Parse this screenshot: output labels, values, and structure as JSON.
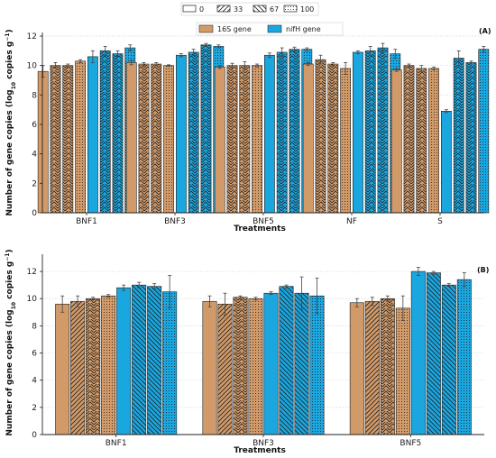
{
  "legend_hatch": {
    "items": [
      {
        "label": "0",
        "pattern": "none"
      },
      {
        "label": "33",
        "pattern": "diag"
      },
      {
        "label": "67",
        "pattern": "backdiag"
      },
      {
        "label": "100",
        "pattern": "dots"
      }
    ]
  },
  "colors": {
    "gene_16s": "#D29A68",
    "gene_nifh": "#1AA6DF",
    "grid": "#DDDDDD"
  },
  "chart_data": [
    {
      "type": "bar",
      "panel_label": "(A)",
      "xlabel": "Treatments",
      "ylabel_main": "Number of gene copies (log",
      "ylabel_sub": "10",
      "ylabel_tail": " copies g",
      "ylabel_sup": "−1",
      "ylabel_close": ")",
      "ylim": [
        0,
        12
      ],
      "yticks": [
        0,
        2,
        4,
        6,
        8,
        10,
        12
      ],
      "grid": true,
      "legend": {
        "position": "top-center",
        "entries": [
          "16S gene",
          "nifH gene"
        ]
      },
      "categories": [
        "BNF1",
        "BNF3",
        "BNF5",
        "NF",
        "S"
      ],
      "hatch_order": [
        "none",
        "chevron",
        "chevron",
        "dots",
        "none",
        "chevron",
        "chevron",
        "dots"
      ],
      "series": [
        {
          "gene": "16S gene",
          "level": "0",
          "values": [
            9.6,
            10.2,
            9.9,
            10.1,
            9.7
          ],
          "errors": [
            0.4,
            0.15,
            0.1,
            0.1,
            0.1
          ]
        },
        {
          "gene": "16S gene",
          "level": "33",
          "values": [
            10.0,
            10.1,
            10.0,
            10.4,
            10.0
          ],
          "errors": [
            0.2,
            0.1,
            0.15,
            0.3,
            0.1
          ]
        },
        {
          "gene": "16S gene",
          "level": "67",
          "values": [
            10.0,
            10.1,
            10.0,
            10.1,
            9.8
          ],
          "errors": [
            0.1,
            0.1,
            0.25,
            0.1,
            0.2
          ]
        },
        {
          "gene": "16S gene",
          "level": "100",
          "values": [
            10.3,
            10.0,
            10.0,
            9.8,
            9.8
          ],
          "errors": [
            0.1,
            0.05,
            0.1,
            0.4,
            0.1
          ]
        },
        {
          "gene": "nifH gene",
          "level": "0",
          "values": [
            10.6,
            10.7,
            10.7,
            10.9,
            6.9
          ],
          "errors": [
            0.4,
            0.1,
            0.15,
            0.1,
            0.1
          ]
        },
        {
          "gene": "nifH gene",
          "level": "33",
          "values": [
            11.0,
            10.9,
            10.9,
            11.0,
            10.5
          ],
          "errors": [
            0.3,
            0.2,
            0.3,
            0.3,
            0.5
          ]
        },
        {
          "gene": "nifH gene",
          "level": "67",
          "values": [
            10.8,
            11.4,
            11.1,
            11.2,
            10.2
          ],
          "errors": [
            0.2,
            0.1,
            0.15,
            0.3,
            0.1
          ]
        },
        {
          "gene": "nifH gene",
          "level": "100",
          "values": [
            11.2,
            11.3,
            11.1,
            10.8,
            11.1
          ],
          "errors": [
            0.2,
            0.1,
            0.1,
            0.3,
            0.2
          ]
        }
      ]
    },
    {
      "type": "bar",
      "panel_label": "(B)",
      "xlabel": "Treatments",
      "ylabel_main": "Number of gene copies (log",
      "ylabel_sub": "10",
      "ylabel_tail": " copies g",
      "ylabel_sup": "−1",
      "ylabel_close": ")",
      "ylim": [
        0,
        13
      ],
      "yticks": [
        0,
        2,
        4,
        6,
        8,
        10,
        12
      ],
      "grid": true,
      "categories": [
        "BNF1",
        "BNF3",
        "BNF5"
      ],
      "hatch_order": [
        "none",
        "diag",
        "chevron",
        "dots",
        "none",
        "backdiag",
        "backdiag",
        "dots"
      ],
      "series": [
        {
          "gene": "16S gene",
          "level": "0",
          "values": [
            9.6,
            9.8,
            9.7
          ],
          "errors": [
            0.6,
            0.4,
            0.3
          ]
        },
        {
          "gene": "16S gene",
          "level": "33",
          "values": [
            9.8,
            9.6,
            9.8
          ],
          "errors": [
            0.4,
            0.8,
            0.3
          ]
        },
        {
          "gene": "16S gene",
          "level": "67",
          "values": [
            10.0,
            10.1,
            10.0
          ],
          "errors": [
            0.1,
            0.1,
            0.2
          ]
        },
        {
          "gene": "16S gene",
          "level": "100",
          "values": [
            10.2,
            10.0,
            9.3
          ],
          "errors": [
            0.1,
            0.1,
            0.9
          ]
        },
        {
          "gene": "nifH gene",
          "level": "0",
          "values": [
            10.8,
            10.4,
            12.0
          ],
          "errors": [
            0.2,
            0.1,
            0.3
          ]
        },
        {
          "gene": "nifH gene",
          "level": "33",
          "values": [
            11.0,
            10.9,
            11.9
          ],
          "errors": [
            0.2,
            0.1,
            0.1
          ]
        },
        {
          "gene": "nifH gene",
          "level": "67",
          "values": [
            10.9,
            10.4,
            11.0
          ],
          "errors": [
            0.2,
            1.2,
            0.1
          ]
        },
        {
          "gene": "nifH gene",
          "level": "100",
          "values": [
            10.5,
            10.2,
            11.4
          ],
          "errors": [
            1.2,
            1.3,
            0.5
          ]
        }
      ]
    }
  ]
}
